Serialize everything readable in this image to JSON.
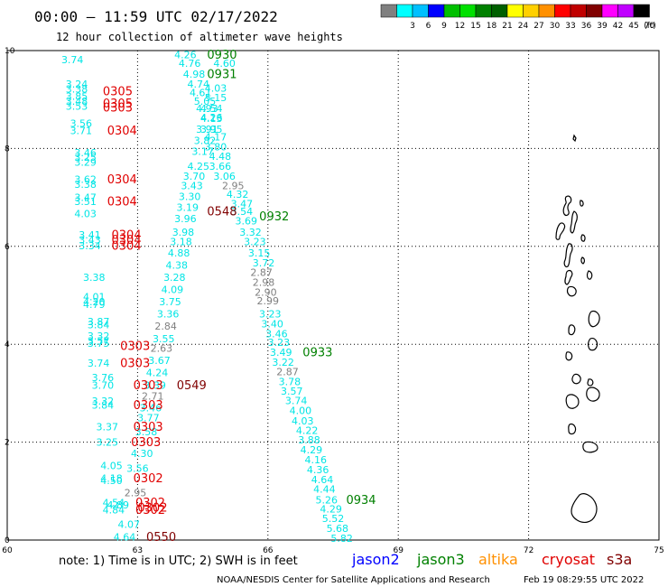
{
  "header": {
    "title": "00:00 – 11:59 UTC 02/17/2022",
    "subtitle": "12 hour collection of altimeter wave heights"
  },
  "color_scale": {
    "unit_label": "(ft)",
    "bins": [
      {
        "label": "",
        "color": "#808080"
      },
      {
        "label": "3",
        "color": "#00ffff"
      },
      {
        "label": "6",
        "color": "#00c0ff"
      },
      {
        "label": "9",
        "color": "#0000ff"
      },
      {
        "label": "12",
        "color": "#00c000"
      },
      {
        "label": "15",
        "color": "#00e000"
      },
      {
        "label": "18",
        "color": "#008000"
      },
      {
        "label": "21",
        "color": "#006000"
      },
      {
        "label": "24",
        "color": "#ffff00"
      },
      {
        "label": "27",
        "color": "#ffd000"
      },
      {
        "label": "30",
        "color": "#ff9000"
      },
      {
        "label": "33",
        "color": "#ff0000"
      },
      {
        "label": "36",
        "color": "#c00000"
      },
      {
        "label": "39",
        "color": "#800000"
      },
      {
        "label": "42",
        "color": "#ff00ff"
      },
      {
        "label": "45",
        "color": "#c000ff"
      },
      {
        "label": "70",
        "color": "#000000"
      }
    ]
  },
  "map": {
    "lon_range": [
      60,
      75
    ],
    "lat_range": [
      0,
      10
    ],
    "lon_ticks": [
      "60",
      "63",
      "66",
      "69",
      "72",
      "75"
    ],
    "lat_ticks": [
      "0",
      "2",
      "4",
      "6",
      "8",
      "10"
    ],
    "grid_lon": [
      63,
      66,
      69,
      72
    ],
    "grid_lat": [
      2,
      4,
      6,
      8
    ],
    "colors": {
      "sea_state_low": "#00e5e5",
      "sea_state_grey": "#808080",
      "jason3": "#008000",
      "cryosat": "#e00000",
      "s3a": "#800000",
      "coastline": "#000000"
    },
    "observations": [
      {
        "text": "3.74",
        "lon": 61.5,
        "lat": 9.8,
        "c": "c"
      },
      {
        "text": "3.24",
        "lon": 61.6,
        "lat": 9.3,
        "c": "c"
      },
      {
        "text": "3.38",
        "lon": 61.6,
        "lat": 9.2,
        "c": "c"
      },
      {
        "text": "3.85",
        "lon": 61.6,
        "lat": 9.05,
        "c": "c"
      },
      {
        "text": "3.48",
        "lon": 61.6,
        "lat": 8.95,
        "c": "c"
      },
      {
        "text": "3.53",
        "lon": 61.6,
        "lat": 8.85,
        "c": "c"
      },
      {
        "text": "3.56",
        "lon": 61.7,
        "lat": 8.5,
        "c": "c"
      },
      {
        "text": "3.71",
        "lon": 61.7,
        "lat": 8.35,
        "c": "c"
      },
      {
        "text": "3.46",
        "lon": 61.8,
        "lat": 7.9,
        "c": "c"
      },
      {
        "text": "3.25",
        "lon": 61.8,
        "lat": 7.8,
        "c": "c"
      },
      {
        "text": "3.29",
        "lon": 61.8,
        "lat": 7.7,
        "c": "c"
      },
      {
        "text": "3.62",
        "lon": 61.8,
        "lat": 7.35,
        "c": "c"
      },
      {
        "text": "3.38",
        "lon": 61.8,
        "lat": 7.25,
        "c": "c"
      },
      {
        "text": "3.47",
        "lon": 61.8,
        "lat": 6.98,
        "c": "c"
      },
      {
        "text": "3.51",
        "lon": 61.8,
        "lat": 6.9,
        "c": "c"
      },
      {
        "text": "4.03",
        "lon": 61.8,
        "lat": 6.65,
        "c": "c"
      },
      {
        "text": "3.41",
        "lon": 61.9,
        "lat": 6.22,
        "c": "c"
      },
      {
        "text": "3.43",
        "lon": 61.9,
        "lat": 6.12,
        "c": "c"
      },
      {
        "text": "3.34",
        "lon": 61.9,
        "lat": 6.0,
        "c": "c"
      },
      {
        "text": "3.38",
        "lon": 62.0,
        "lat": 5.35,
        "c": "c"
      },
      {
        "text": "4.01",
        "lon": 62.0,
        "lat": 4.95,
        "c": "c"
      },
      {
        "text": "4.20",
        "lon": 62.0,
        "lat": 4.85,
        "c": "c"
      },
      {
        "text": "4.79",
        "lon": 62.0,
        "lat": 4.8,
        "c": "c"
      },
      {
        "text": "3.87",
        "lon": 62.1,
        "lat": 4.45,
        "c": "c"
      },
      {
        "text": "3.84",
        "lon": 62.1,
        "lat": 4.38,
        "c": "c"
      },
      {
        "text": "3.32",
        "lon": 62.1,
        "lat": 4.15,
        "c": "c"
      },
      {
        "text": "3.57",
        "lon": 62.1,
        "lat": 4.05,
        "c": "c"
      },
      {
        "text": "3.75",
        "lon": 62.1,
        "lat": 4.0,
        "c": "c"
      },
      {
        "text": "3.74",
        "lon": 62.1,
        "lat": 3.6,
        "c": "c"
      },
      {
        "text": "3.76",
        "lon": 62.2,
        "lat": 3.3,
        "c": "c"
      },
      {
        "text": "3.70",
        "lon": 62.2,
        "lat": 3.15,
        "c": "c"
      },
      {
        "text": "3.32",
        "lon": 62.2,
        "lat": 2.82,
        "c": "c"
      },
      {
        "text": "3.84",
        "lon": 62.2,
        "lat": 2.74,
        "c": "c"
      },
      {
        "text": "3.37",
        "lon": 62.3,
        "lat": 2.3,
        "c": "c"
      },
      {
        "text": "3.25",
        "lon": 62.3,
        "lat": 1.98,
        "c": "c"
      },
      {
        "text": "4.05",
        "lon": 62.4,
        "lat": 1.5,
        "c": "c"
      },
      {
        "text": "4.18",
        "lon": 62.4,
        "lat": 1.25,
        "c": "c"
      },
      {
        "text": "4.50",
        "lon": 62.4,
        "lat": 1.2,
        "c": "c"
      },
      {
        "text": "4.54",
        "lon": 62.45,
        "lat": 0.75,
        "c": "c"
      },
      {
        "text": "4.89",
        "lon": 62.55,
        "lat": 0.7,
        "c": "c"
      },
      {
        "text": "4.84",
        "lon": 62.45,
        "lat": 0.6,
        "c": "c"
      },
      {
        "text": "4.07",
        "lon": 62.8,
        "lat": 0.3,
        "c": "c"
      },
      {
        "text": "4.64",
        "lon": 62.7,
        "lat": 0.05,
        "c": "c"
      },
      {
        "text": "4.26",
        "lon": 64.1,
        "lat": 9.9,
        "c": "c"
      },
      {
        "text": "4.76",
        "lon": 64.2,
        "lat": 9.72,
        "c": "c"
      },
      {
        "text": "4.60",
        "lon": 65.0,
        "lat": 9.72,
        "c": "c"
      },
      {
        "text": "4.98",
        "lon": 64.3,
        "lat": 9.5,
        "c": "c"
      },
      {
        "text": "4.74",
        "lon": 64.4,
        "lat": 9.3,
        "c": "c"
      },
      {
        "text": "4.03",
        "lon": 64.8,
        "lat": 9.22,
        "c": "c"
      },
      {
        "text": "4.61",
        "lon": 64.45,
        "lat": 9.12,
        "c": "c"
      },
      {
        "text": "5.15",
        "lon": 64.8,
        "lat": 9.02,
        "c": "c"
      },
      {
        "text": "5.05",
        "lon": 64.55,
        "lat": 8.95,
        "c": "c"
      },
      {
        "text": "4.93",
        "lon": 64.6,
        "lat": 8.8,
        "c": "c"
      },
      {
        "text": "4.54",
        "lon": 64.7,
        "lat": 8.8,
        "c": "c"
      },
      {
        "text": "4.26",
        "lon": 64.7,
        "lat": 8.62,
        "c": "c"
      },
      {
        "text": "4.13",
        "lon": 64.7,
        "lat": 8.6,
        "c": "c"
      },
      {
        "text": "3.91",
        "lon": 64.6,
        "lat": 8.38,
        "c": "c"
      },
      {
        "text": "3.95",
        "lon": 64.7,
        "lat": 8.38,
        "c": "c"
      },
      {
        "text": "4.17",
        "lon": 64.8,
        "lat": 8.22,
        "c": "c"
      },
      {
        "text": "3.82",
        "lon": 64.55,
        "lat": 8.15,
        "c": "c"
      },
      {
        "text": "3.80",
        "lon": 64.8,
        "lat": 8.02,
        "c": "c"
      },
      {
        "text": "3.17",
        "lon": 64.5,
        "lat": 7.92,
        "c": "c"
      },
      {
        "text": "4.48",
        "lon": 64.9,
        "lat": 7.82,
        "c": "c"
      },
      {
        "text": "4.25",
        "lon": 64.4,
        "lat": 7.62,
        "c": "c"
      },
      {
        "text": "3.66",
        "lon": 64.9,
        "lat": 7.62,
        "c": "c"
      },
      {
        "text": "3.70",
        "lon": 64.3,
        "lat": 7.42,
        "c": "c"
      },
      {
        "text": "3.06",
        "lon": 65.0,
        "lat": 7.42,
        "c": "c"
      },
      {
        "text": "3.43",
        "lon": 64.25,
        "lat": 7.22,
        "c": "c"
      },
      {
        "text": "2.95",
        "lon": 65.2,
        "lat": 7.22,
        "c": "g"
      },
      {
        "text": "3.30",
        "lon": 64.2,
        "lat": 7.0,
        "c": "c"
      },
      {
        "text": "4.32",
        "lon": 65.3,
        "lat": 7.05,
        "c": "c"
      },
      {
        "text": "3.19",
        "lon": 64.15,
        "lat": 6.78,
        "c": "c"
      },
      {
        "text": "3.47",
        "lon": 65.4,
        "lat": 6.85,
        "c": "c"
      },
      {
        "text": "3.54",
        "lon": 65.4,
        "lat": 6.7,
        "c": "c"
      },
      {
        "text": "3.96",
        "lon": 64.1,
        "lat": 6.55,
        "c": "c"
      },
      {
        "text": "3.69",
        "lon": 65.5,
        "lat": 6.5,
        "c": "c"
      },
      {
        "text": "3.98",
        "lon": 64.05,
        "lat": 6.27,
        "c": "c"
      },
      {
        "text": "3.32",
        "lon": 65.6,
        "lat": 6.27,
        "c": "c"
      },
      {
        "text": "3.18",
        "lon": 64.0,
        "lat": 6.08,
        "c": "c"
      },
      {
        "text": "3.23",
        "lon": 65.7,
        "lat": 6.08,
        "c": "c"
      },
      {
        "text": "4.88",
        "lon": 63.95,
        "lat": 5.85,
        "c": "c"
      },
      {
        "text": "3.15",
        "lon": 65.8,
        "lat": 5.85,
        "c": "c"
      },
      {
        "text": "4.38",
        "lon": 63.9,
        "lat": 5.6,
        "c": "c"
      },
      {
        "text": "3.72",
        "lon": 65.9,
        "lat": 5.65,
        "c": "c"
      },
      {
        "text": "2.87",
        "lon": 65.85,
        "lat": 5.45,
        "c": "g"
      },
      {
        "text": "3.28",
        "lon": 63.85,
        "lat": 5.35,
        "c": "c"
      },
      {
        "text": "2.98",
        "lon": 65.9,
        "lat": 5.25,
        "c": "g"
      },
      {
        "text": "4.09",
        "lon": 63.8,
        "lat": 5.1,
        "c": "c"
      },
      {
        "text": "2.90",
        "lon": 65.95,
        "lat": 5.05,
        "c": "g"
      },
      {
        "text": "3.75",
        "lon": 63.75,
        "lat": 4.85,
        "c": "c"
      },
      {
        "text": "2.99",
        "lon": 66.0,
        "lat": 4.87,
        "c": "g"
      },
      {
        "text": "3.36",
        "lon": 63.7,
        "lat": 4.6,
        "c": "c"
      },
      {
        "text": "3.23",
        "lon": 66.05,
        "lat": 4.6,
        "c": "c"
      },
      {
        "text": "2.84",
        "lon": 63.65,
        "lat": 4.35,
        "c": "g"
      },
      {
        "text": "3.40",
        "lon": 66.1,
        "lat": 4.4,
        "c": "c"
      },
      {
        "text": "3.55",
        "lon": 63.6,
        "lat": 4.1,
        "c": "c"
      },
      {
        "text": "3.46",
        "lon": 66.2,
        "lat": 4.2,
        "c": "c"
      },
      {
        "text": "2.63",
        "lon": 63.55,
        "lat": 3.9,
        "c": "g"
      },
      {
        "text": "3.23",
        "lon": 66.25,
        "lat": 4.02,
        "c": "c"
      },
      {
        "text": "3.67",
        "lon": 63.5,
        "lat": 3.65,
        "c": "c"
      },
      {
        "text": "3.49",
        "lon": 66.3,
        "lat": 3.82,
        "c": "c"
      },
      {
        "text": "4.24",
        "lon": 63.45,
        "lat": 3.4,
        "c": "c"
      },
      {
        "text": "3.22",
        "lon": 66.35,
        "lat": 3.62,
        "c": "c"
      },
      {
        "text": "2.87",
        "lon": 66.45,
        "lat": 3.42,
        "c": "g"
      },
      {
        "text": "3.39",
        "lon": 63.4,
        "lat": 3.15,
        "c": "c"
      },
      {
        "text": "3.78",
        "lon": 66.5,
        "lat": 3.22,
        "c": "c"
      },
      {
        "text": "2.71",
        "lon": 63.35,
        "lat": 2.92,
        "c": "g"
      },
      {
        "text": "3.57",
        "lon": 66.55,
        "lat": 3.03,
        "c": "c"
      },
      {
        "text": "3.46",
        "lon": 63.3,
        "lat": 2.68,
        "c": "c"
      },
      {
        "text": "3.74",
        "lon": 66.65,
        "lat": 2.83,
        "c": "c"
      },
      {
        "text": "3.77",
        "lon": 63.25,
        "lat": 2.48,
        "c": "c"
      },
      {
        "text": "4.00",
        "lon": 66.75,
        "lat": 2.63,
        "c": "c"
      },
      {
        "text": "3.58",
        "lon": 63.2,
        "lat": 2.2,
        "c": "c"
      },
      {
        "text": "4.03",
        "lon": 66.8,
        "lat": 2.42,
        "c": "c"
      },
      {
        "text": "4.22",
        "lon": 66.9,
        "lat": 2.22,
        "c": "c"
      },
      {
        "text": "4.30",
        "lon": 63.1,
        "lat": 1.75,
        "c": "c"
      },
      {
        "text": "3.88",
        "lon": 66.95,
        "lat": 2.03,
        "c": "c"
      },
      {
        "text": "4.29",
        "lon": 67.0,
        "lat": 1.83,
        "c": "c"
      },
      {
        "text": "3.56",
        "lon": 63.0,
        "lat": 1.45,
        "c": "c"
      },
      {
        "text": "4.16",
        "lon": 67.1,
        "lat": 1.62,
        "c": "c"
      },
      {
        "text": "4.36",
        "lon": 67.15,
        "lat": 1.42,
        "c": "c"
      },
      {
        "text": "2.95",
        "lon": 62.95,
        "lat": 0.95,
        "c": "g"
      },
      {
        "text": "4.64",
        "lon": 67.25,
        "lat": 1.22,
        "c": "c"
      },
      {
        "text": "4.44",
        "lon": 67.3,
        "lat": 1.02,
        "c": "c"
      },
      {
        "text": "5.26",
        "lon": 67.35,
        "lat": 0.8,
        "c": "c"
      },
      {
        "text": "4.29",
        "lon": 67.45,
        "lat": 0.62,
        "c": "c"
      },
      {
        "text": "5.52",
        "lon": 67.5,
        "lat": 0.42,
        "c": "c"
      },
      {
        "text": "5.68",
        "lon": 67.6,
        "lat": 0.22,
        "c": "c"
      },
      {
        "text": "5.82",
        "lon": 67.7,
        "lat": 0.02,
        "c": "c"
      }
    ],
    "pass_labels": [
      {
        "text": "0930",
        "lon": 64.6,
        "lat": 9.9,
        "sat": "jason3"
      },
      {
        "text": "0931",
        "lon": 64.6,
        "lat": 9.5,
        "sat": "jason3"
      },
      {
        "text": "0932",
        "lon": 65.8,
        "lat": 6.6,
        "sat": "jason3"
      },
      {
        "text": "0933",
        "lon": 66.8,
        "lat": 3.82,
        "sat": "jason3"
      },
      {
        "text": "0934",
        "lon": 67.8,
        "lat": 0.8,
        "sat": "jason3"
      },
      {
        "text": "0548",
        "lon": 64.6,
        "lat": 6.7,
        "sat": "s3a"
      },
      {
        "text": "0549",
        "lon": 63.9,
        "lat": 3.15,
        "sat": "s3a"
      },
      {
        "text": "0550",
        "lon": 63.2,
        "lat": 0.05,
        "sat": "s3a"
      },
      {
        "text": "0305",
        "lon": 62.2,
        "lat": 9.15,
        "sat": "cryosat"
      },
      {
        "text": "0305",
        "lon": 62.2,
        "lat": 8.9,
        "sat": "cryosat"
      },
      {
        "text": "0303",
        "lon": 62.2,
        "lat": 8.82,
        "sat": "cryosat"
      },
      {
        "text": "0304",
        "lon": 62.3,
        "lat": 8.35,
        "sat": "cryosat"
      },
      {
        "text": "0304",
        "lon": 62.3,
        "lat": 7.35,
        "sat": "cryosat"
      },
      {
        "text": "0304",
        "lon": 62.3,
        "lat": 6.9,
        "sat": "cryosat"
      },
      {
        "text": "0304",
        "lon": 62.4,
        "lat": 6.22,
        "sat": "cryosat"
      },
      {
        "text": "0304",
        "lon": 62.4,
        "lat": 6.12,
        "sat": "cryosat"
      },
      {
        "text": "0304",
        "lon": 62.4,
        "lat": 6.0,
        "sat": "cryosat"
      },
      {
        "text": "0303",
        "lon": 62.6,
        "lat": 3.95,
        "sat": "cryosat"
      },
      {
        "text": "0303",
        "lon": 62.6,
        "lat": 3.6,
        "sat": "cryosat"
      },
      {
        "text": "0303",
        "lon": 62.9,
        "lat": 3.15,
        "sat": "cryosat"
      },
      {
        "text": "0303",
        "lon": 62.9,
        "lat": 2.74,
        "sat": "cryosat"
      },
      {
        "text": "0303",
        "lon": 62.9,
        "lat": 2.3,
        "sat": "cryosat"
      },
      {
        "text": "0303",
        "lon": 62.85,
        "lat": 1.98,
        "sat": "cryosat"
      },
      {
        "text": "0302",
        "lon": 62.9,
        "lat": 1.25,
        "sat": "cryosat"
      },
      {
        "text": "0302",
        "lon": 62.95,
        "lat": 0.75,
        "sat": "cryosat"
      },
      {
        "text": "0302",
        "lon": 62.95,
        "lat": 0.6,
        "sat": "cryosat"
      },
      {
        "text": "0302",
        "lon": 63.0,
        "lat": 0.65,
        "sat": "cryosat"
      }
    ]
  },
  "footer": {
    "note": "note:  1) Time is in UTC; 2) SWH is in feet",
    "satellites": [
      {
        "name": "jason2",
        "color": "#0000ff"
      },
      {
        "name": "jason3",
        "color": "#008000"
      },
      {
        "name": "altika",
        "color": "#ff9000"
      },
      {
        "name": "cryosat",
        "color": "#e00000"
      },
      {
        "name": "s3a",
        "color": "#800000"
      }
    ],
    "credit": "NOAA/NESDIS Center for Satellite Applications and Research",
    "timestamp": "Feb 19 08:29:55 UTC 2022"
  }
}
